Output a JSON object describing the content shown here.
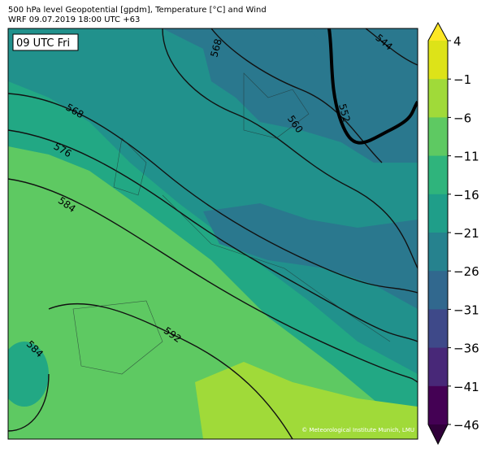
{
  "header": {
    "title": "500 hPa level Geopotential [gpdm], Temperature [°C] and Wind",
    "subtitle": "WRF 09.07.2019 18:00 UTC +63"
  },
  "map": {
    "time_label": "09 UTC Fri",
    "contour_labels": [
      "568",
      "568",
      "576",
      "584",
      "592",
      "560",
      "552",
      "544",
      "584"
    ],
    "credit": "© Meteorological Institute Munich, LMU"
  },
  "colorbar": {
    "ticks": [
      "4",
      "−1",
      "−6",
      "−11",
      "−16",
      "−21",
      "−26",
      "−31",
      "−36",
      "−41",
      "−46"
    ]
  }
}
